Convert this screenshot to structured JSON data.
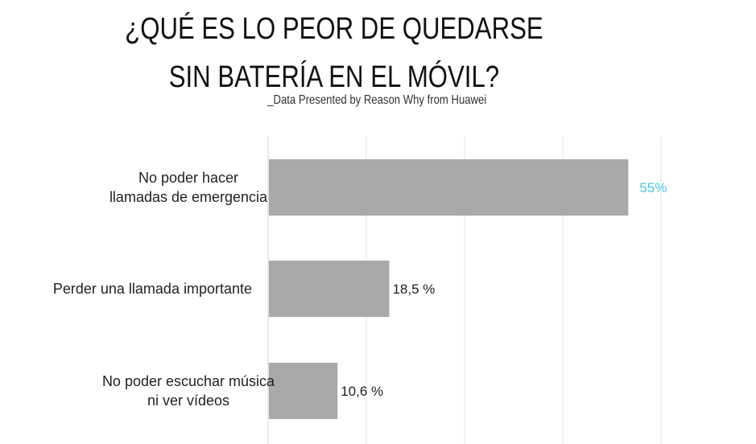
{
  "title_lines": [
    "¿QUÉ ES LO PEOR DE QUEDARSE",
    "SIN BATERÍA EN EL MÓVIL?"
  ],
  "subtitle": "_Data Presented by Reason Why from Huawei",
  "chart_data": {
    "type": "bar",
    "orientation": "horizontal",
    "categories": [
      [
        "No poder hacer",
        "llamadas de emergencia"
      ],
      [
        "Perder una llamada importante"
      ],
      [
        "No poder escuchar música",
        "ni ver vídeos"
      ]
    ],
    "values": [
      55,
      18.5,
      10.6
    ],
    "value_labels": [
      "55%",
      "18,5 %",
      "10,6 %"
    ],
    "value_label_colors": [
      "#4fc3e8",
      "#222222",
      "#222222"
    ],
    "bar_color": "#a9a9a9",
    "xlim": [
      0,
      60
    ],
    "gridlines": [
      0,
      15,
      30,
      45,
      60
    ],
    "grid": true
  }
}
